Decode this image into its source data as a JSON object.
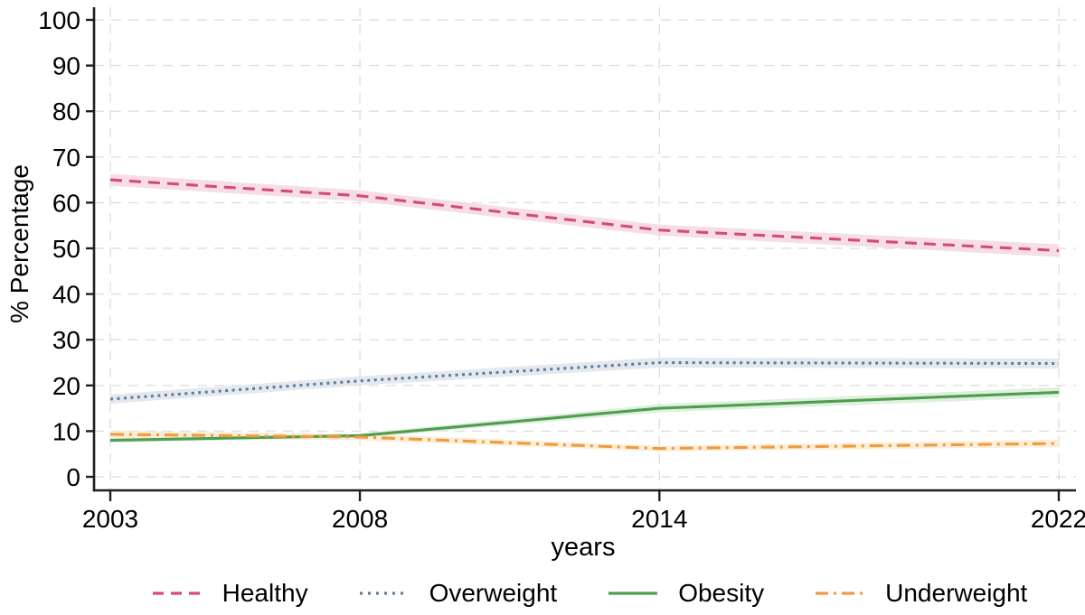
{
  "figure_background": "#ffffff",
  "axis_color": "#1f1f1f",
  "grid_color": "#e0e0e0",
  "chart_data": {
    "type": "line",
    "title": "",
    "xlabel": "years",
    "ylabel": "% Percentage",
    "x": [
      2003,
      2008,
      2014,
      2022
    ],
    "x_tick_labels": [
      "2003",
      "2008",
      "2014",
      "2022"
    ],
    "y_ticks": [
      0,
      10,
      20,
      30,
      40,
      50,
      60,
      70,
      80,
      90,
      100
    ],
    "y_tick_labels": [
      "0",
      "10",
      "20",
      "30",
      "40",
      "50",
      "60",
      "70",
      "80",
      "90",
      "100"
    ],
    "ylim": [
      0,
      100
    ],
    "xlim": [
      2003,
      2022
    ],
    "grid": true,
    "gridline_style": "dashed",
    "legend_position": "bottom",
    "series": [
      {
        "name": "Healthy",
        "values": [
          65,
          61.5,
          54,
          49.5
        ],
        "ci": [
          1.3,
          1.2,
          1.2,
          1.4
        ],
        "color": "#d6497c",
        "band_color": "#f4d4e0",
        "line_style": "dash"
      },
      {
        "name": "Overweight",
        "values": [
          17,
          21,
          25,
          24.8
        ],
        "ci": [
          1.0,
          1.0,
          1.1,
          1.1
        ],
        "color": "#5f7d95",
        "band_color": "#dde4ec",
        "line_style": "dot"
      },
      {
        "name": "Obesity",
        "values": [
          8,
          9.0,
          15,
          18.5
        ],
        "ci": [
          0.5,
          0.5,
          0.9,
          1.1
        ],
        "color": "#4f9d50",
        "band_color": "#d8ecd6",
        "line_style": "solid"
      },
      {
        "name": "Underweight",
        "values": [
          9.3,
          8.7,
          6.2,
          7.3
        ],
        "ci": [
          0.8,
          0.7,
          0.6,
          0.8
        ],
        "color": "#f09b3d",
        "band_color": "#fbe8cc",
        "line_style": "dash_dot"
      }
    ]
  }
}
